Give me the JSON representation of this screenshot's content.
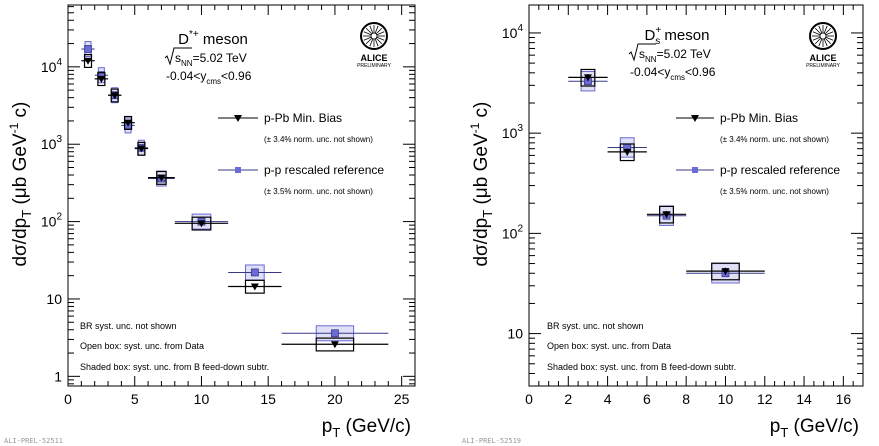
{
  "chart_data": [
    {
      "type": "scatter",
      "title": "D*+ meson",
      "title_main": "D",
      "title_sup": "*+",
      "title_rest": " meson",
      "energy_label": "=5.02 TeV",
      "energy_sqrt": "s",
      "energy_sub": "NN",
      "rapidity_pre": "-0.04<y",
      "rapidity_sub": "cms",
      "rapidity_post": "<0.96",
      "ylabel": "dσ/dp_T (μb GeV^-1 c)",
      "xlabel": "p_T (GeV/c)",
      "yscale": "log",
      "xlim": [
        0,
        26
      ],
      "ylim": [
        0.75,
        63000
      ],
      "xticks": [
        "0",
        "5",
        "10",
        "15",
        "20",
        "25"
      ],
      "yticks": [
        "1",
        "10",
        "10²",
        "10³",
        "10⁴"
      ],
      "logo": "ALICE",
      "logo_sub": "PRELIMINARY",
      "legend": [
        {
          "label": "p-Pb Min. Bias",
          "note": "(± 3.4% norm. unc. not shown)",
          "marker": "triangle",
          "color": "#000000"
        },
        {
          "label": "p-p rescaled reference",
          "note": "(± 3.5% norm. unc. not shown)",
          "marker": "square",
          "color": "#6b6bd6"
        }
      ],
      "notes": [
        "BR syst. unc. not shown",
        "Open box: syst. unc. from Data",
        "Shaded box: syst. unc. from B feed-down subtr."
      ],
      "preliminary_id": "ALI-PREL-52511",
      "series": [
        {
          "name": "p-Pb Min. Bias",
          "x": [
            1.5,
            2.5,
            3.5,
            4.5,
            5.5,
            7,
            10,
            14,
            20
          ],
          "xerr": [
            0.5,
            0.5,
            0.5,
            0.5,
            0.5,
            1,
            2,
            2,
            4
          ],
          "y": [
            12000,
            7000,
            4300,
            1900,
            880,
            370,
            95,
            14.5,
            2.6
          ]
        },
        {
          "name": "p-p rescaled reference",
          "x": [
            1.5,
            2.5,
            3.5,
            4.5,
            5.5,
            7,
            10,
            14,
            20
          ],
          "xerr": [
            0.5,
            0.5,
            0.5,
            0.5,
            0.5,
            1,
            2,
            2,
            4
          ],
          "y": [
            17000,
            7800,
            4300,
            1750,
            900,
            360,
            100,
            22,
            3.6
          ]
        }
      ]
    },
    {
      "type": "scatter",
      "title": "Ds+ meson",
      "title_main": "D",
      "title_sup": "+",
      "title_sub": "s",
      "title_rest": " meson",
      "energy_label": "=5.02 TeV",
      "energy_sqrt": "s",
      "energy_sub": "NN",
      "rapidity_pre": "-0.04<y",
      "rapidity_sub": "cms",
      "rapidity_post": "<0.96",
      "ylabel": "dσ/dp_T (μb GeV^-1 c)",
      "xlabel": "p_T (GeV/c)",
      "yscale": "log",
      "xlim": [
        0,
        17
      ],
      "ylim": [
        3,
        19000
      ],
      "xticks": [
        "0",
        "2",
        "4",
        "6",
        "8",
        "10",
        "12",
        "14",
        "16"
      ],
      "yticks": [
        "10",
        "10²",
        "10³",
        "10⁴"
      ],
      "logo": "ALICE",
      "logo_sub": "PRELIMINARY",
      "legend": [
        {
          "label": "p-Pb Min. Bias",
          "note": "(± 3.4% norm. unc. not shown)",
          "marker": "triangle",
          "color": "#000000"
        },
        {
          "label": "p-p rescaled reference",
          "note": "(± 3.5% norm. unc. not shown)",
          "marker": "square",
          "color": "#6b6bd6"
        }
      ],
      "notes": [
        "BR syst. unc. not shown",
        "Open box: syst. unc. from Data",
        "Shaded box: syst. unc. from B feed-down subtr."
      ],
      "preliminary_id": "ALI-PREL-52519",
      "series": [
        {
          "name": "p-Pb Min. Bias",
          "x": [
            3,
            5,
            7,
            10
          ],
          "xerr": [
            1,
            1,
            1,
            2
          ],
          "y": [
            3600,
            650,
            155,
            42
          ]
        },
        {
          "name": "p-p rescaled reference",
          "x": [
            3,
            5,
            7,
            10
          ],
          "xerr": [
            1,
            1,
            1,
            2
          ],
          "y": [
            3300,
            720,
            150,
            40
          ]
        }
      ]
    }
  ]
}
